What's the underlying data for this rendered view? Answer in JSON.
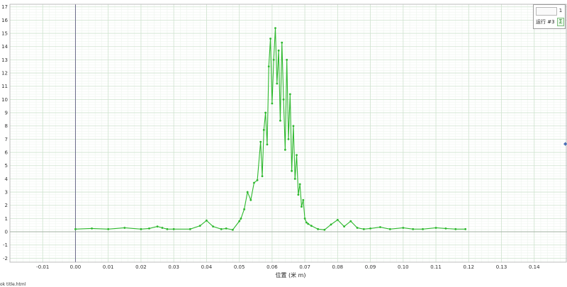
{
  "legend": {
    "top_value": "",
    "badge": "1",
    "series_name": "运行 #3",
    "swatch_icon": "sigma-icon"
  },
  "status_text": "ok title.html",
  "right_handle": "◆",
  "colors": {
    "series": "#2db82d",
    "grid_major": "#cfe3cf",
    "grid_minor": "#eef5ee",
    "axis": "#6a6a8a"
  },
  "chart_data": {
    "type": "line",
    "title": "",
    "xlabel": "位置 (米 m)",
    "ylabel": "",
    "xlim": [
      -0.02,
      0.15
    ],
    "ylim": [
      -2.3,
      17.2
    ],
    "x_ticks": [
      -0.01,
      0.0,
      0.01,
      0.02,
      0.03,
      0.04,
      0.05,
      0.06,
      0.07,
      0.08,
      0.09,
      0.1,
      0.11,
      0.12,
      0.13,
      0.14
    ],
    "x_tick_labels": [
      "-0.01",
      "0.00",
      "0.01",
      "0.02",
      "0.03",
      "0.04",
      "0.05",
      "0.06",
      "0.07",
      "0.08",
      "0.09",
      "0.10",
      "0.11",
      "0.12",
      "0.13",
      "0.14"
    ],
    "y_ticks": [
      -2,
      -1,
      0,
      1,
      2,
      3,
      4,
      5,
      6,
      7,
      8,
      9,
      10,
      11,
      12,
      13,
      14,
      15,
      16,
      17
    ],
    "y_tick_labels": [
      "-2",
      "-1",
      "0",
      "1",
      "2",
      "3",
      "4",
      "5",
      "6",
      "7",
      "8",
      "9",
      "10",
      "11",
      "12",
      "13",
      "14",
      "15",
      "16",
      "17"
    ],
    "grid": true,
    "legend_position": "top-right",
    "series": [
      {
        "name": "运行 #3",
        "x": [
          0.0,
          0.005,
          0.01,
          0.015,
          0.02,
          0.0225,
          0.025,
          0.0265,
          0.028,
          0.03,
          0.035,
          0.038,
          0.04,
          0.042,
          0.0445,
          0.046,
          0.048,
          0.05,
          0.0505,
          0.0515,
          0.0525,
          0.0535,
          0.0545,
          0.0555,
          0.0565,
          0.057,
          0.0575,
          0.058,
          0.0585,
          0.059,
          0.0595,
          0.06,
          0.0605,
          0.061,
          0.0615,
          0.062,
          0.0625,
          0.063,
          0.0635,
          0.064,
          0.0645,
          0.065,
          0.0655,
          0.066,
          0.0665,
          0.067,
          0.0675,
          0.068,
          0.0685,
          0.069,
          0.0695,
          0.07,
          0.0705,
          0.071,
          0.072,
          0.074,
          0.076,
          0.078,
          0.08,
          0.082,
          0.084,
          0.086,
          0.088,
          0.09,
          0.093,
          0.096,
          0.1,
          0.103,
          0.106,
          0.11,
          0.113,
          0.116,
          0.119
        ],
        "y": [
          0.2,
          0.25,
          0.2,
          0.3,
          0.2,
          0.25,
          0.4,
          0.3,
          0.2,
          0.2,
          0.2,
          0.45,
          0.85,
          0.4,
          0.2,
          0.25,
          0.15,
          0.8,
          1.0,
          1.7,
          3.0,
          2.4,
          3.7,
          3.9,
          6.8,
          4.2,
          7.7,
          9.0,
          6.6,
          12.5,
          14.6,
          9.7,
          13.0,
          15.4,
          11.2,
          13.7,
          8.4,
          14.3,
          10.0,
          6.2,
          13.0,
          7.0,
          10.4,
          4.6,
          8.0,
          4.0,
          5.8,
          2.8,
          3.6,
          1.9,
          2.4,
          1.0,
          0.7,
          0.6,
          0.45,
          0.2,
          0.15,
          0.55,
          0.9,
          0.4,
          0.8,
          0.3,
          0.2,
          0.25,
          0.35,
          0.2,
          0.3,
          0.2,
          0.2,
          0.3,
          0.25,
          0.2,
          0.2
        ]
      }
    ]
  }
}
